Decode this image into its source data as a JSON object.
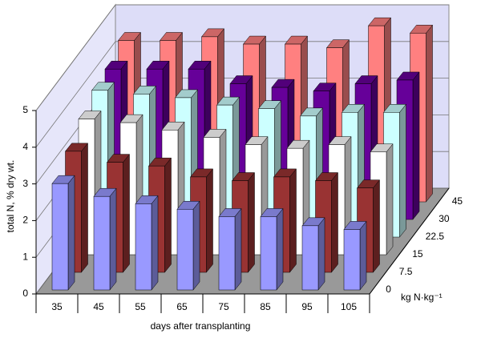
{
  "chart_data": {
    "type": "bar3d",
    "xlabel": "days after transplanting",
    "ylabel": "total N, % dry wt.",
    "zlabel": "kg N·kg⁻¹",
    "categories": [
      "35",
      "45",
      "55",
      "65",
      "75",
      "85",
      "95",
      "105"
    ],
    "series": [
      {
        "name": "0",
        "color": "#9999ff",
        "values": [
          2.9,
          2.55,
          2.35,
          2.2,
          2.0,
          2.0,
          1.75,
          1.65
        ]
      },
      {
        "name": "7.5",
        "color": "#993333",
        "values": [
          3.3,
          3.0,
          2.9,
          2.6,
          2.5,
          2.6,
          2.5,
          2.3
        ]
      },
      {
        "name": "15",
        "color": "#ffffff",
        "values": [
          3.7,
          3.6,
          3.4,
          3.2,
          3.0,
          2.9,
          3.0,
          2.8
        ]
      },
      {
        "name": "22.5",
        "color": "#ccffff",
        "values": [
          4.0,
          3.9,
          3.8,
          3.6,
          3.5,
          3.3,
          3.4,
          3.4
        ]
      },
      {
        "name": "30",
        "color": "#660099",
        "values": [
          4.1,
          4.1,
          4.1,
          3.7,
          3.6,
          3.5,
          3.7,
          3.8
        ]
      },
      {
        "name": "45",
        "color": "#ff8080",
        "values": [
          4.4,
          4.4,
          4.5,
          4.3,
          4.3,
          4.2,
          4.8,
          4.6
        ]
      }
    ],
    "ylim": [
      0,
      5
    ],
    "yticks": [
      0,
      1,
      2,
      3,
      4,
      5
    ],
    "grid": true
  }
}
